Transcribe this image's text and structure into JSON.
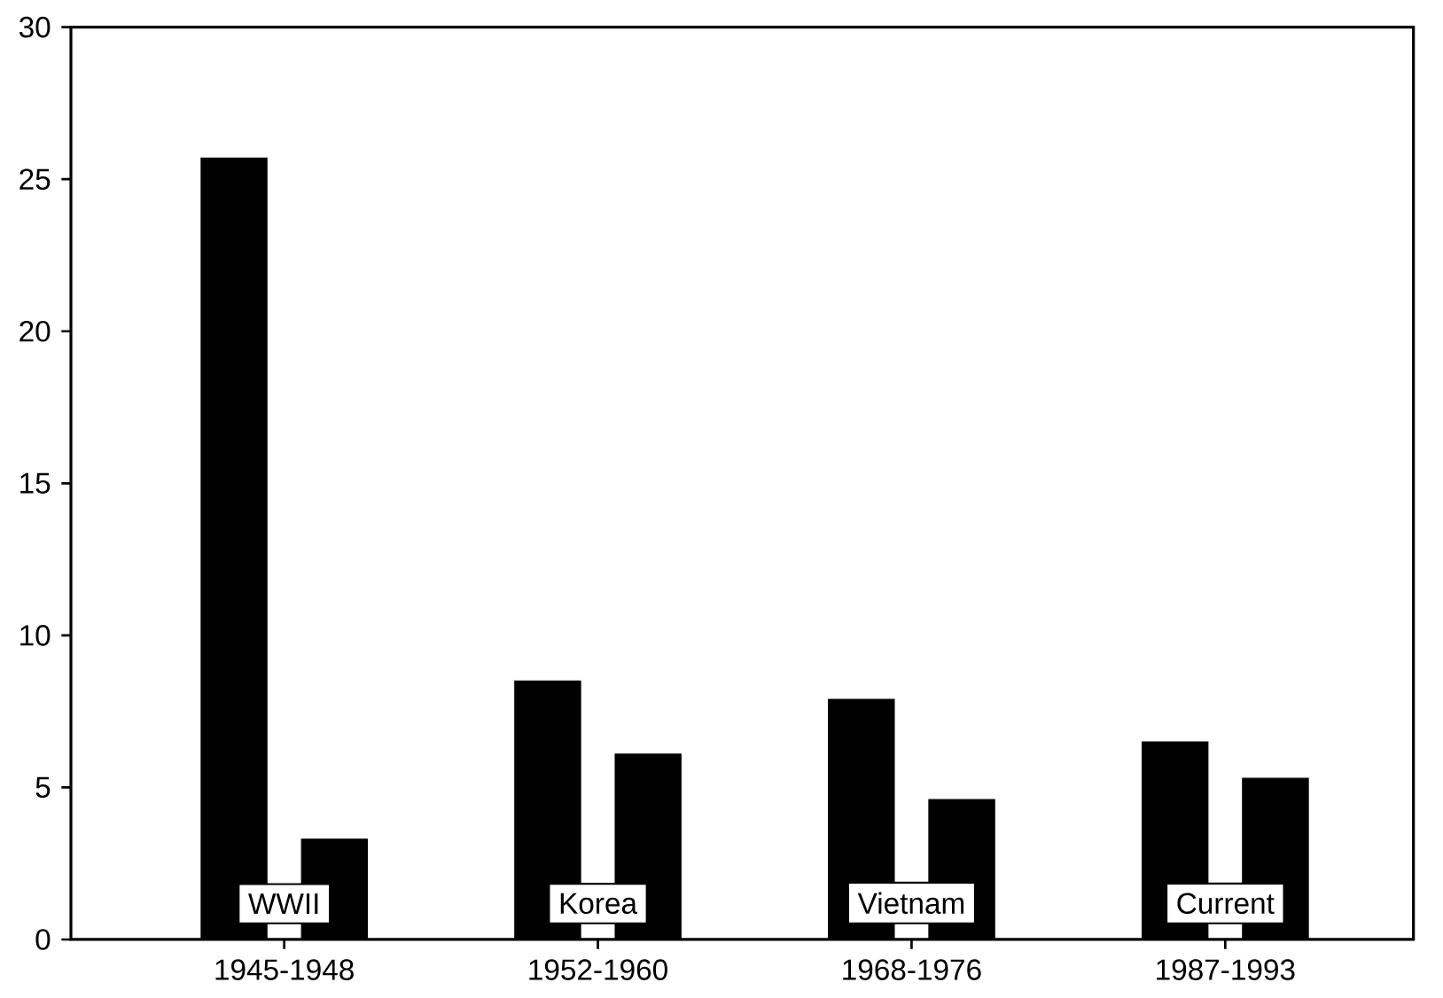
{
  "chart_data": {
    "type": "bar",
    "categories": [
      "1945-1948",
      "1952-1960",
      "1968-1976",
      "1987-1993"
    ],
    "series": [
      {
        "color": "#000000",
        "values": [
          25.7,
          8.5,
          7.9,
          6.5
        ]
      },
      {
        "color": "#000000",
        "values": [
          3.3,
          6.1,
          4.6,
          5.3
        ]
      }
    ],
    "ylim": [
      0,
      30
    ],
    "yticks": [
      0,
      5,
      10,
      15,
      20,
      25,
      30
    ],
    "annotations": [
      "WWII",
      "Korea",
      "Vietnam",
      "Current"
    ]
  }
}
